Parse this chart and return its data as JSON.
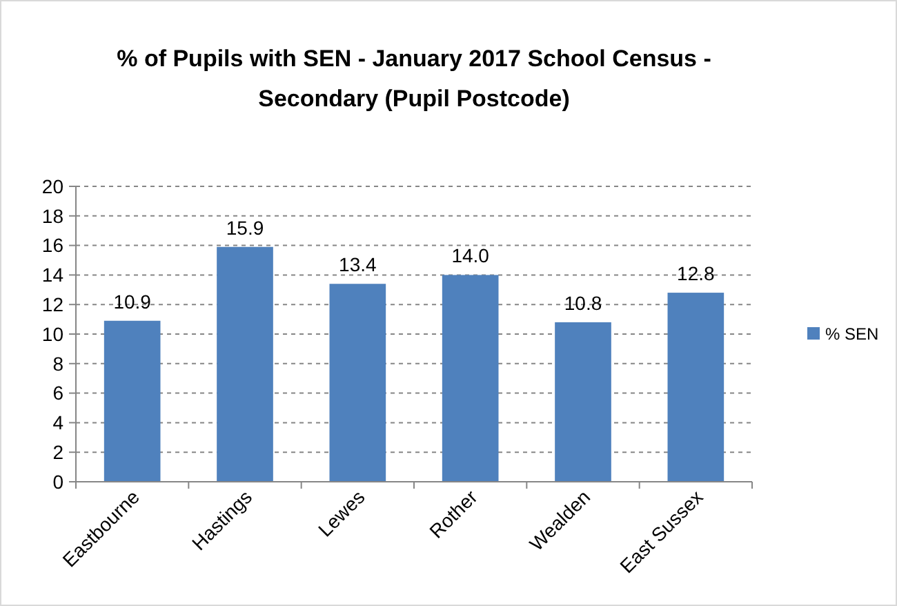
{
  "chart_data": {
    "type": "bar",
    "title": "% of Pupils with SEN - January 2017 School Census - Secondary (Pupil Postcode)",
    "categories": [
      "Eastbourne",
      "Hastings",
      "Lewes",
      "Rother",
      "Wealden",
      "East Sussex"
    ],
    "series": [
      {
        "name": "% SEN",
        "color": "#4f81bd",
        "values": [
          10.9,
          15.9,
          13.4,
          14.0,
          10.8,
          12.8
        ],
        "value_labels": [
          "10.9",
          "15.9",
          "13.4",
          "14.0",
          "10.8",
          "12.8"
        ]
      }
    ],
    "ylim": [
      0,
      20
    ],
    "yticks": [
      0,
      2,
      4,
      6,
      8,
      10,
      12,
      14,
      16,
      18,
      20
    ],
    "grid": "y",
    "legend": "right"
  }
}
